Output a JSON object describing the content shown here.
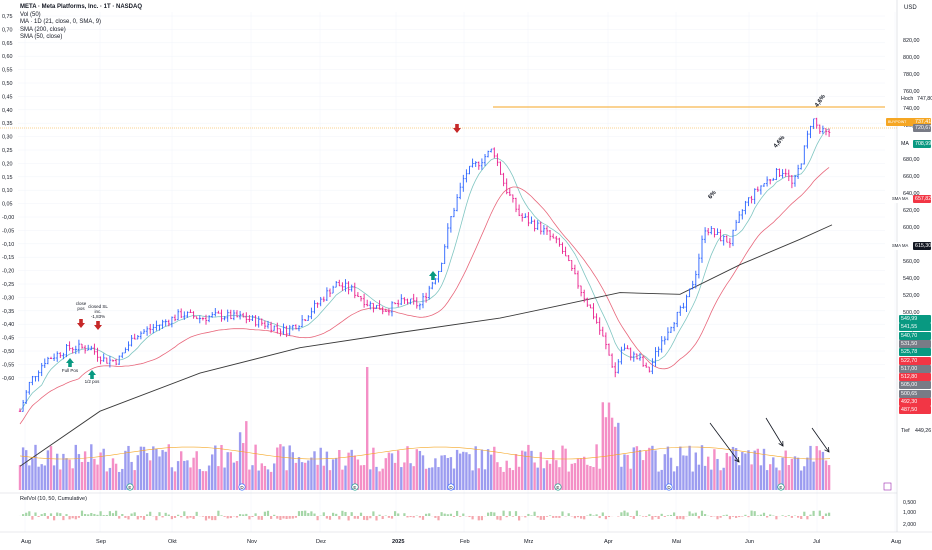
{
  "header": {
    "symbol_line": "META · Meta Platforms, Inc. · 1T · NASDAQ",
    "vol_line": "Vol (50)",
    "ma_line": "MA · 1D (21, close, 0, SMA, 9)",
    "sma200_line": "SMA (200, close)",
    "sma50_line": "SMA (50, close)"
  },
  "currency": "USD",
  "indicator_label": "RelVol (10, 50, Cumulative)",
  "left_axis": [
    "0,75",
    "0,70",
    "0,65",
    "0,60",
    "0,55",
    "0,50",
    "0,45",
    "0,40",
    "0,35",
    "0,30",
    "0,25",
    "0,20",
    "0,15",
    "0,10",
    "0,05",
    "-0,00",
    "-0,05",
    "-0,10",
    "-0,15",
    "-0,20",
    "-0,25",
    "-0,30",
    "-0,35",
    "-0,40",
    "-0,45",
    "-0,50",
    "-0,55",
    "-0,60"
  ],
  "right_axis": [
    "820,00",
    "800,00",
    "780,00",
    "760,00",
    "740,00",
    "720,00",
    "700,00",
    "680,00",
    "660,00",
    "640,00",
    "620,00",
    "600,00",
    "580,00",
    "560,00",
    "540,00",
    "520,00",
    "500,00",
    "480,00",
    "460,00",
    "440,00",
    "420,00",
    "400,00"
  ],
  "relvol_axis": [
    "2,000",
    "1,000",
    "0,500"
  ],
  "x_axis": [
    "Aug",
    "Sep",
    "Okt",
    "Nov",
    "Dez",
    "2025",
    "Feb",
    "Mrz",
    "Apr",
    "Mai",
    "Jun",
    "Jul",
    "Aug"
  ],
  "price_labels": {
    "hoch_text": "Hoch",
    "hoch_value": "747,80",
    "buy_point_text": "BUYPOINT",
    "buy_point_value": "737,41",
    "last_value": "720,67",
    "ma_text": "MA",
    "ma_value": "708,99",
    "sma50_text": "SMA MA",
    "sma50_value": "657,82",
    "sma200_text": "SMA MA",
    "sma200_value": "615,30",
    "tief_text": "Tief",
    "tief_value": "449,26"
  },
  "lower_labels": [
    {
      "v": "549,99",
      "c": "#089981"
    },
    {
      "v": "541,55",
      "c": "#089981"
    },
    {
      "v": "540,70",
      "c": "#089981"
    },
    {
      "v": "531,50",
      "c": "#787b86"
    },
    {
      "v": "525,78",
      "c": "#089981"
    },
    {
      "v": "522,70",
      "c": "#f23645"
    },
    {
      "v": "517,00",
      "c": "#787b86"
    },
    {
      "v": "512,80",
      "c": "#f23645"
    },
    {
      "v": "505,00",
      "c": "#787b86"
    },
    {
      "v": "500,65",
      "c": "#787b86"
    },
    {
      "v": "492,30",
      "c": "#f23645"
    },
    {
      "v": "487,50",
      "c": "#f23645"
    }
  ],
  "annotations": {
    "close_pos": "close pos",
    "closed_sl": "closed SL inc. -1,83%",
    "full_pos": "Full Pos",
    "half_pos": "1/2 pos",
    "pct_a": "6%",
    "pct_b": "4,6%",
    "pct_c": "4,6%"
  },
  "event_markers": [
    "E",
    "D",
    "E",
    "D",
    "E",
    "D",
    "E",
    "D",
    "E"
  ],
  "colors": {
    "up_bar": "#2962ff",
    "down_bar": "#e91e8c",
    "vol_up": "#9c9cf0",
    "vol_down": "#f48fc6",
    "ma21": "#80c6c2",
    "sma50": "#e8687c",
    "sma200": "#3a3a3a",
    "buypoint": "#f5a623",
    "buy_arrow": "#089981",
    "sell_arrow": "#c62828"
  }
}
